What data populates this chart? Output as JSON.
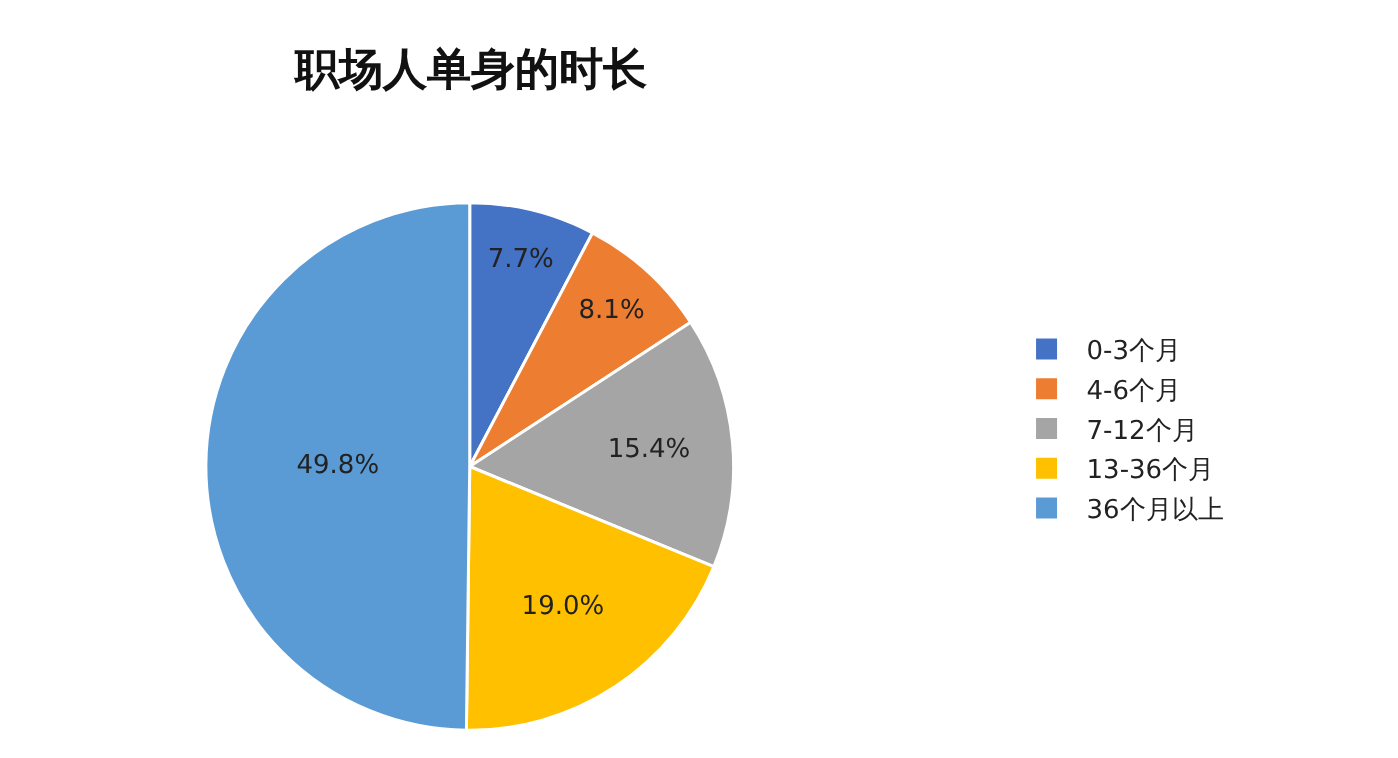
{
  "chart_data": {
    "type": "pie",
    "title": "职场人单身的时长",
    "categories": [
      "0-3个月",
      "4-6个月",
      "7-12个月",
      "13-36个月",
      "36个月以上"
    ],
    "values": [
      7.7,
      8.1,
      15.4,
      19.0,
      49.8
    ],
    "colors": [
      "#4472c4",
      "#ed7d31",
      "#a5a5a5",
      "#ffc000",
      "#5b9bd5"
    ],
    "value_labels": [
      "7.7%",
      "8.1%",
      "15.4%",
      "19.0%",
      "49.8%"
    ],
    "legend": "right"
  }
}
